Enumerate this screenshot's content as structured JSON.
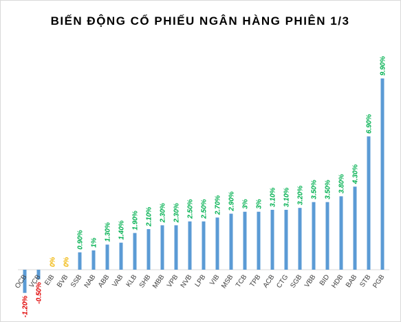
{
  "chart_data": {
    "type": "bar",
    "title": "BIẾN ĐỘNG CỔ PHIẾU NGÂN HÀNG PHIÊN 1/3",
    "categories": [
      "OCB",
      "VCB",
      "EIB",
      "BVB",
      "SSB",
      "NAB",
      "ABB",
      "VAB",
      "KLB",
      "SHB",
      "MBB",
      "VPB",
      "NVB",
      "LPB",
      "VIB",
      "MSB",
      "TCB",
      "TPB",
      "ACB",
      "CTG",
      "SGB",
      "VBB",
      "BID",
      "HDB",
      "BAB",
      "STB",
      "PGB"
    ],
    "values": [
      -1.2,
      -0.5,
      0,
      0,
      0.9,
      1,
      1.3,
      1.4,
      1.9,
      2.1,
      2.3,
      2.3,
      2.5,
      2.5,
      2.7,
      2.9,
      3,
      3,
      3.1,
      3.1,
      3.2,
      3.5,
      3.5,
      3.8,
      4.3,
      6.9,
      9.9
    ],
    "value_labels": [
      "-1.20%",
      "-0.50%",
      "0%",
      "0%",
      "0.90%",
      "1%",
      "1.30%",
      "1.40%",
      "1.90%",
      "2.10%",
      "2.30%",
      "2.30%",
      "2.50%",
      "2.50%",
      "2.70%",
      "2.90%",
      "3%",
      "3%",
      "3.10%",
      "3.10%",
      "3.20%",
      "3.50%",
      "3.50%",
      "3.80%",
      "4.30%",
      "6.90%",
      "9.90%"
    ],
    "color": "#5b9bd5",
    "label_colors": {
      "negative": "#e00000",
      "zero": "#f0b400",
      "positive": "#00b050"
    }
  }
}
